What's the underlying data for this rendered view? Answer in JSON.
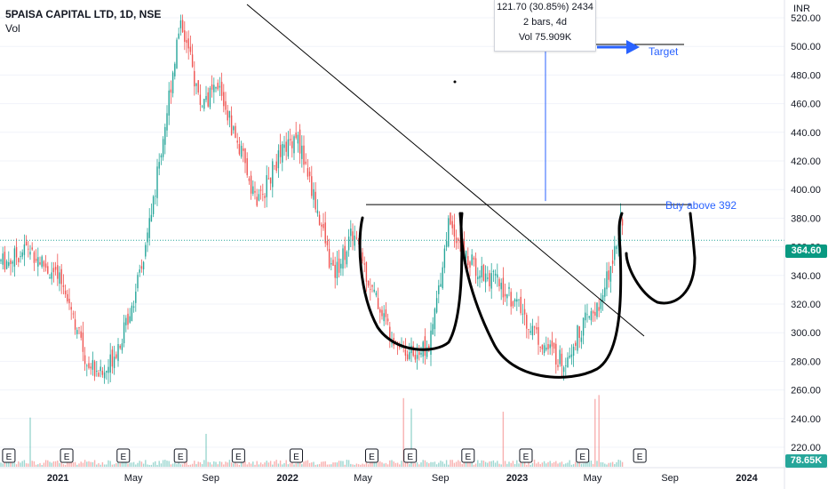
{
  "legend": {
    "symbol": "5PAISA CAPITAL LTD, 1D, NSE",
    "volume_label": "Vol"
  },
  "currency": "INR",
  "tooltip": {
    "line1": "121.70 (30.85%) 2434",
    "line2": "2 bars, 4d",
    "line3": "Vol 75.909K"
  },
  "price_tag": {
    "value": "364.60",
    "color": "#089981"
  },
  "volume_tag": {
    "value": "78.65K",
    "color": "#26a69a"
  },
  "colors": {
    "up": "#26a69a",
    "down": "#ef5350",
    "drawing": "#000000",
    "annotation": "#2962ff",
    "axis_text": "#131722"
  },
  "chart_data": {
    "type": "candlestick",
    "title": "5PAISA CAPITAL LTD, 1D, NSE",
    "y_axis": {
      "label": "INR",
      "ticks": [
        220,
        240,
        260,
        280,
        300,
        320,
        340,
        360,
        380,
        400,
        420,
        440,
        460,
        480,
        500,
        520
      ],
      "range": [
        212,
        535
      ]
    },
    "x_axis": {
      "ticks": [
        "2021",
        "May",
        "Sep",
        "2022",
        "May",
        "Sep",
        "2023",
        "May",
        "Sep",
        "2024"
      ]
    },
    "last_price": 364.6,
    "last_volume": "78.65K",
    "price_trend": [
      [
        "2020-10",
        350
      ],
      [
        "2020-11",
        360
      ],
      [
        "2020-12",
        345
      ],
      [
        "2021-01",
        330
      ],
      [
        "2021-02",
        280
      ],
      [
        "2021-03",
        270
      ],
      [
        "2021-04",
        300
      ],
      [
        "2021-05",
        345
      ],
      [
        "2021-06",
        430
      ],
      [
        "2021-07",
        520
      ],
      [
        "2021-08",
        460
      ],
      [
        "2021-09",
        470
      ],
      [
        "2021-10",
        430
      ],
      [
        "2021-11",
        390
      ],
      [
        "2021-12",
        420
      ],
      [
        "2022-01",
        440
      ],
      [
        "2022-02",
        390
      ],
      [
        "2022-03",
        340
      ],
      [
        "2022-04",
        370
      ],
      [
        "2022-05",
        330
      ],
      [
        "2022-06",
        300
      ],
      [
        "2022-07",
        285
      ],
      [
        "2022-08",
        290
      ],
      [
        "2022-09",
        380
      ],
      [
        "2022-10",
        350
      ],
      [
        "2022-11",
        340
      ],
      [
        "2022-12",
        330
      ],
      [
        "2023-01",
        310
      ],
      [
        "2023-02",
        290
      ],
      [
        "2023-03",
        280
      ],
      [
        "2023-04",
        305
      ],
      [
        "2023-05",
        320
      ],
      [
        "2023-06",
        380
      ],
      [
        "2023-06-20",
        364.6
      ]
    ],
    "annotations": [
      {
        "text": "Target",
        "price": 515
      },
      {
        "text": "Buy above 392",
        "price": 392
      }
    ],
    "earnings_markers": "E",
    "earnings_dates": [
      "2020-10",
      "2021-01",
      "2021-04",
      "2021-07",
      "2021-10",
      "2022-01",
      "2022-05",
      "2022-07",
      "2022-10",
      "2023-01",
      "2023-04",
      "2023-07"
    ]
  }
}
